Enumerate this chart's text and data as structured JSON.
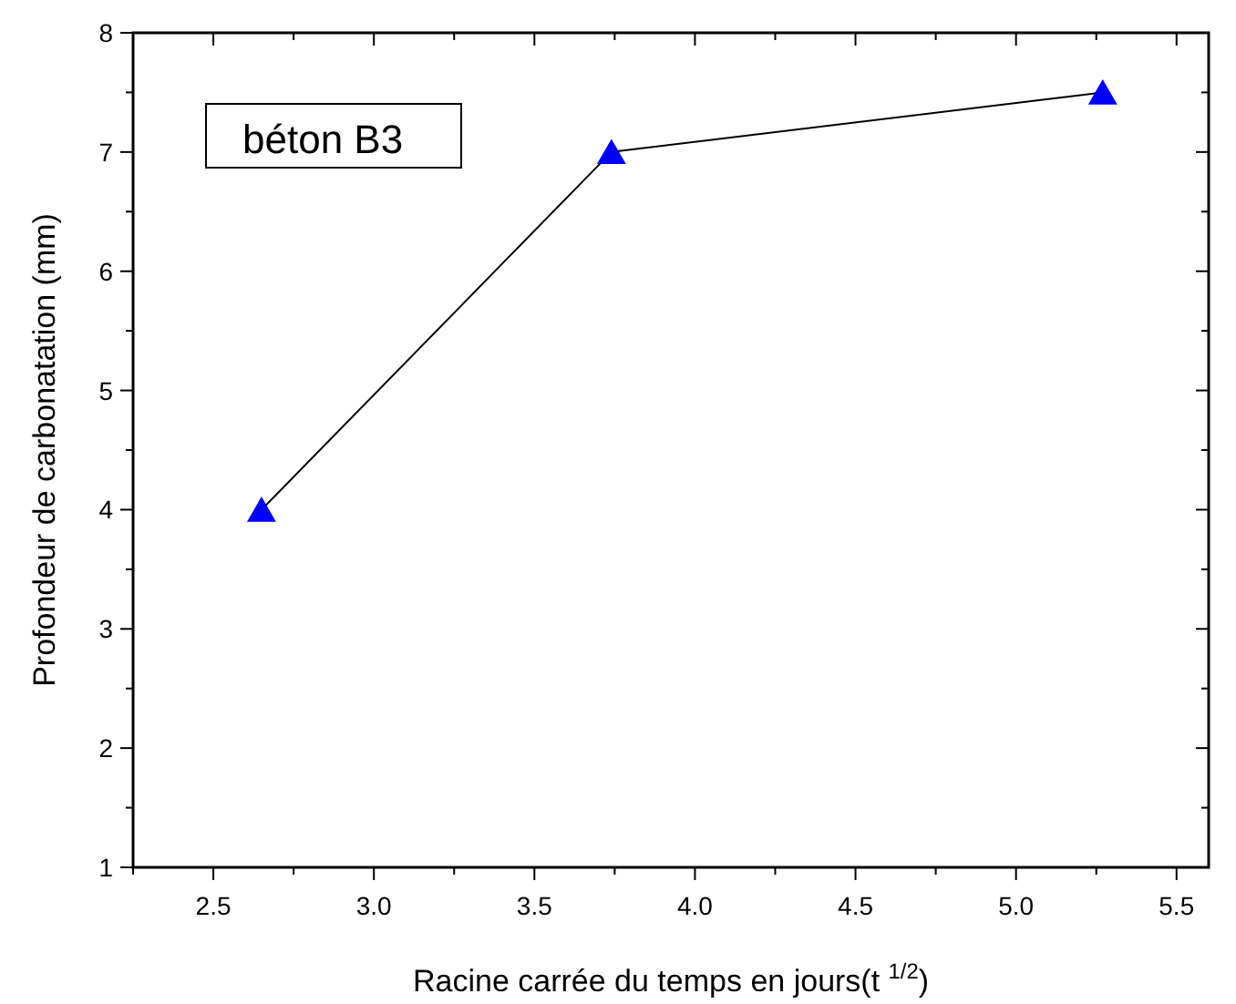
{
  "chart_data": {
    "type": "line",
    "xlabel": "Racine carrée du temps en jours(t $^{1/2}$)",
    "ylabel": "Profondeur de carbonatation (mm)",
    "annotations": [
      "béton B3"
    ],
    "x": [
      2.65,
      3.74,
      5.27
    ],
    "series": [
      {
        "color": "#0000ff",
        "values": [
          4,
          7,
          7.5
        ]
      }
    ],
    "marker": "triangle",
    "line_style": "solid",
    "xlim": [
      2.25,
      5.6
    ],
    "xticks": [
      {
        "value": 2.25,
        "label": null
      },
      2.5,
      {
        "value": 2.75,
        "label": null
      },
      {
        "value": 3,
        "label": "3.0"
      },
      {
        "value": 3.25,
        "label": null
      },
      3.5,
      {
        "value": 3.75,
        "label": null
      },
      {
        "value": 4,
        "label": "4.0"
      },
      {
        "value": 4.25,
        "label": null
      },
      4.5,
      {
        "value": 4.75,
        "label": null
      },
      {
        "value": 5,
        "label": "5.0"
      },
      {
        "value": 5.25,
        "label": null
      },
      5.5
    ],
    "ylim": [
      1,
      8
    ],
    "yticks": [
      1,
      {
        "value": 1.5,
        "label": null
      },
      2,
      {
        "value": 2.5,
        "label": null
      },
      3,
      {
        "value": 3.5,
        "label": null
      },
      4,
      {
        "value": 4.5,
        "label": null
      },
      5,
      {
        "value": 5.5,
        "label": null
      },
      6,
      {
        "value": 6.5,
        "label": null
      },
      7,
      {
        "value": 7.5,
        "label": null
      },
      8
    ],
    "grid": false
  }
}
